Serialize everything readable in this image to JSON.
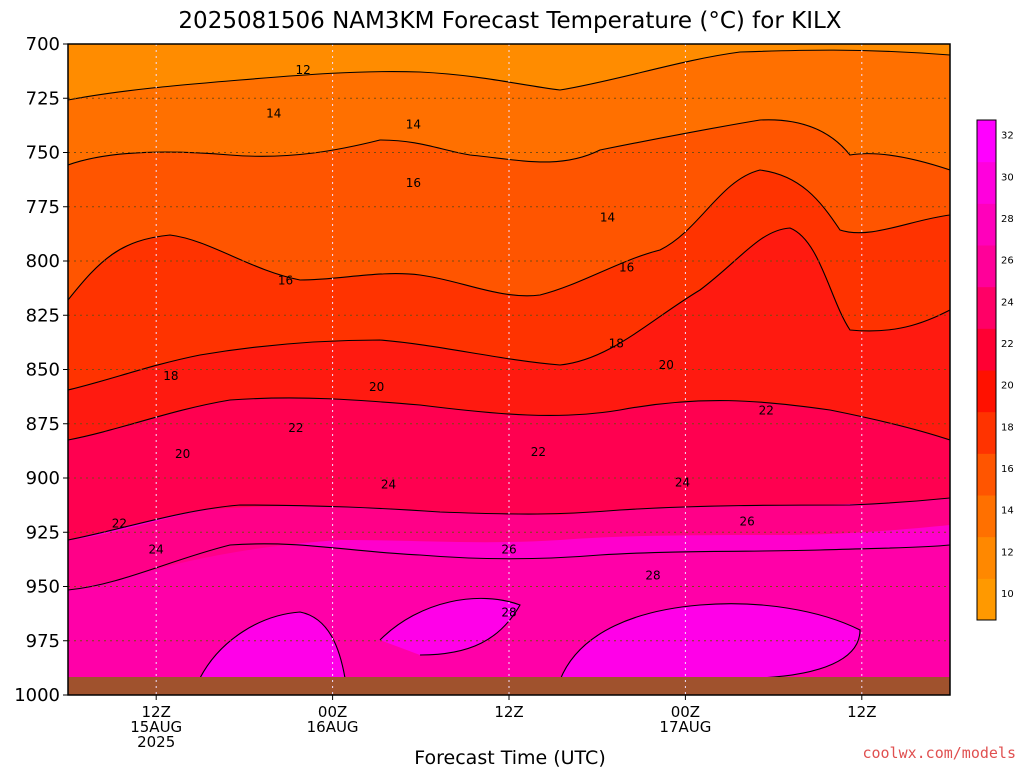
{
  "title": "2025081506 NAM3KM Forecast Temperature (°C) for KILX",
  "xlabel": "Forecast Time (UTC)",
  "credit": "coolwx.com/models",
  "chart_data": {
    "type": "heatmap",
    "title": "2025081506 NAM3KM Forecast Temperature (°C) for KILX",
    "xlabel": "Forecast Time (UTC)",
    "ylabel": "",
    "x_ticks": [
      {
        "hour": 12,
        "lines": [
          "12Z",
          "15AUG",
          "2025"
        ]
      },
      {
        "hour": 24,
        "lines": [
          "00Z",
          "16AUG"
        ]
      },
      {
        "hour": 36,
        "lines": [
          "12Z"
        ]
      },
      {
        "hour": 48,
        "lines": [
          "00Z",
          "17AUG"
        ]
      },
      {
        "hour": 60,
        "lines": [
          "12Z"
        ]
      }
    ],
    "xlim": [
      6,
      66
    ],
    "y_ticks": [
      700,
      725,
      750,
      775,
      800,
      825,
      850,
      875,
      900,
      925,
      950,
      975,
      1000
    ],
    "ylim": [
      1000,
      700
    ],
    "grid": true,
    "colorbar": {
      "ticks": [
        10,
        12,
        14,
        16,
        18,
        20,
        22,
        24,
        26,
        28,
        30,
        32
      ],
      "colors": [
        "#ff9900",
        "#ff8800",
        "#ff7000",
        "#ff5500",
        "#ff3300",
        "#ff1100",
        "#ff0033",
        "#ff0066",
        "#ff0099",
        "#ff00bb",
        "#ff00dd",
        "#ff00ff"
      ]
    },
    "contour_labels": [
      {
        "value": "12",
        "hour": 22,
        "p": 712
      },
      {
        "value": "14",
        "hour": 20,
        "p": 732
      },
      {
        "value": "14",
        "hour": 29.5,
        "p": 737
      },
      {
        "value": "14",
        "hour": 42.7,
        "p": 780
      },
      {
        "value": "16",
        "hour": 29.5,
        "p": 764
      },
      {
        "value": "16",
        "hour": 20.8,
        "p": 809
      },
      {
        "value": "16",
        "hour": 44,
        "p": 803
      },
      {
        "value": "18",
        "hour": 13,
        "p": 853
      },
      {
        "value": "18",
        "hour": 43.3,
        "p": 838
      },
      {
        "value": "20",
        "hour": 13.8,
        "p": 889
      },
      {
        "value": "20",
        "hour": 27,
        "p": 858
      },
      {
        "value": "20",
        "hour": 46.7,
        "p": 848
      },
      {
        "value": "22",
        "hour": 9.5,
        "p": 921
      },
      {
        "value": "22",
        "hour": 21.5,
        "p": 877
      },
      {
        "value": "22",
        "hour": 38,
        "p": 888
      },
      {
        "value": "22",
        "hour": 53.5,
        "p": 869
      },
      {
        "value": "24",
        "hour": 12,
        "p": 933
      },
      {
        "value": "24",
        "hour": 27.8,
        "p": 903
      },
      {
        "value": "24",
        "hour": 47.8,
        "p": 902
      },
      {
        "value": "26",
        "hour": 36,
        "p": 933
      },
      {
        "value": "26",
        "hour": 52.2,
        "p": 920
      },
      {
        "value": "28",
        "hour": 36,
        "p": 962
      },
      {
        "value": "28",
        "hour": 45.8,
        "p": 945
      }
    ]
  }
}
